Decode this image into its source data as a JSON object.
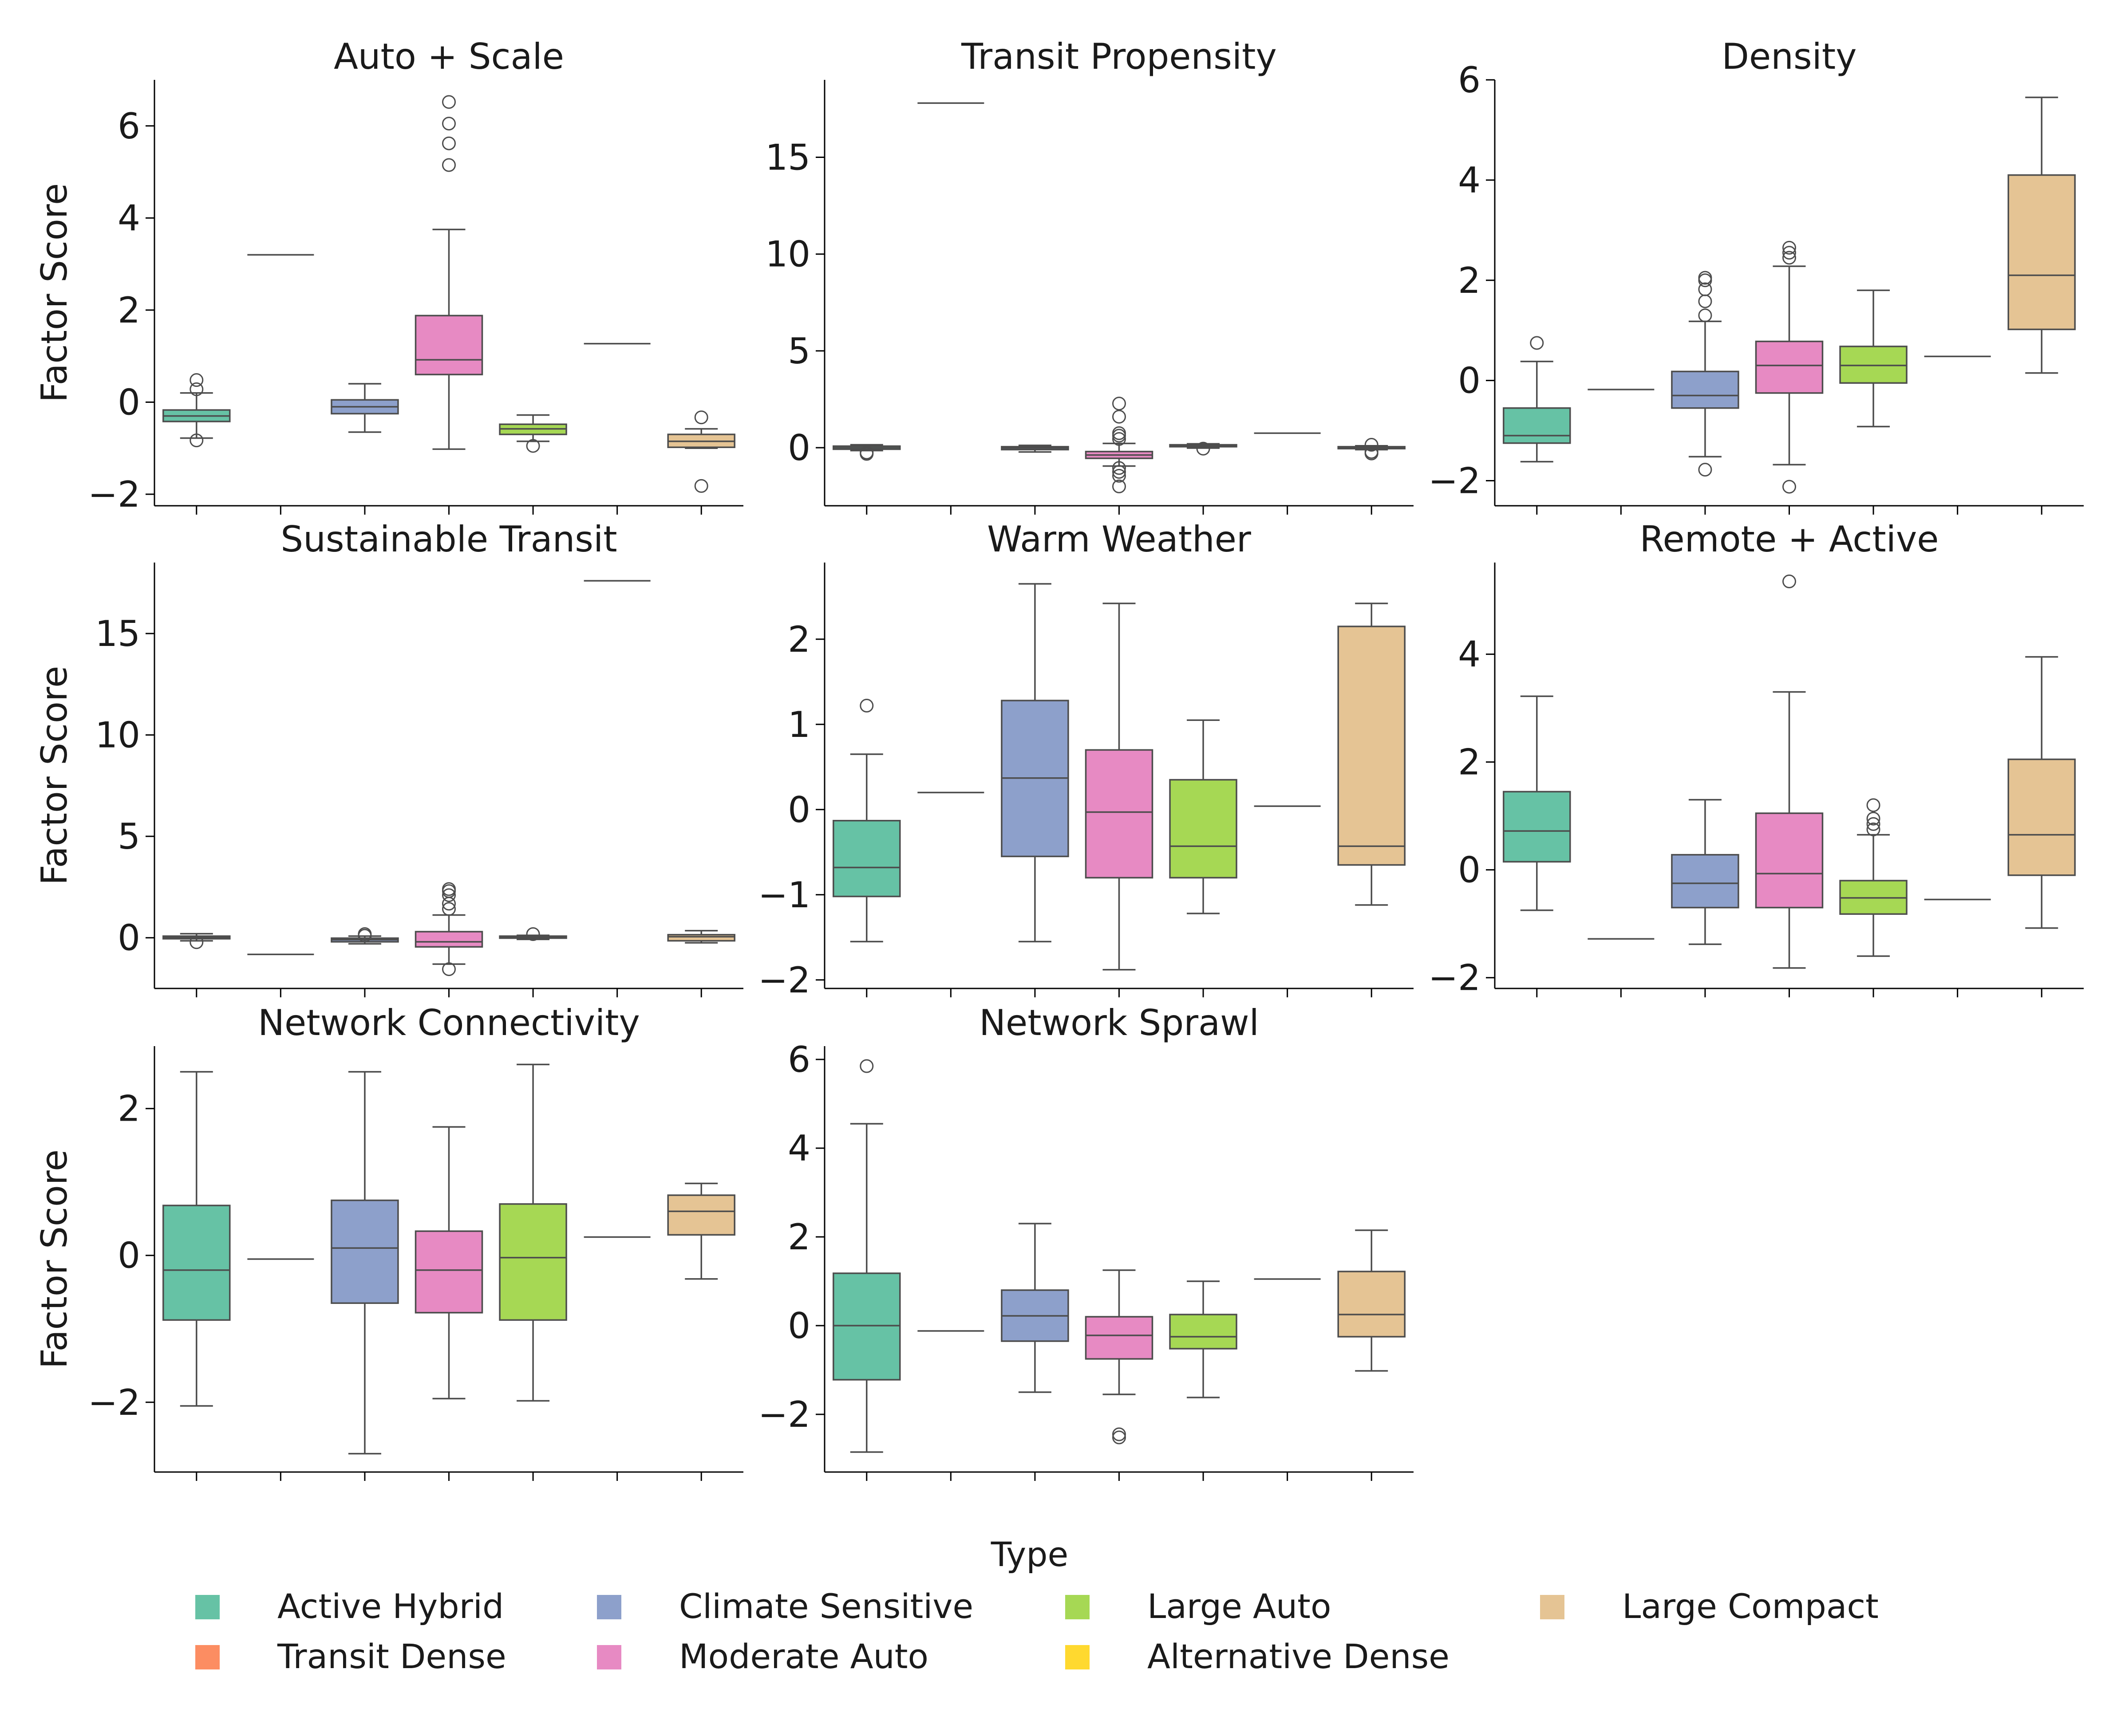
{
  "chart_data": {
    "type": "box",
    "ylabel": "Factor Score",
    "legend": {
      "title": "Type",
      "placement": "bottom-center",
      "entries": [
        {
          "name": "Active Hybrid",
          "color": "#66c2a5"
        },
        {
          "name": "Transit Dense",
          "color": "#fc8d62"
        },
        {
          "name": "Climate Sensitive",
          "color": "#8da0cb"
        },
        {
          "name": "Moderate Auto",
          "color": "#e78ac3"
        },
        {
          "name": "Large Auto",
          "color": "#a6d854"
        },
        {
          "name": "Alternative Dense",
          "color": "#ffd92f"
        },
        {
          "name": "Large Compact",
          "color": "#e5c494"
        }
      ]
    },
    "categories": [
      "Active Hybrid",
      "Transit Dense",
      "Climate Sensitive",
      "Moderate Auto",
      "Large Auto",
      "Alternative Dense",
      "Large Compact"
    ],
    "panels": [
      {
        "title": "Auto + Scale",
        "ylim": [
          -2.25,
          7.0
        ],
        "yticks": [
          -2,
          0,
          2,
          4,
          6
        ],
        "ytick_labels": [
          "−2",
          "0",
          "2",
          "4",
          "6"
        ],
        "boxes": [
          {
            "q1": -0.42,
            "median": -0.3,
            "q3": -0.17,
            "whislo": -0.78,
            "whishi": 0.2,
            "fliers": [
              0.28,
              0.48,
              -0.83
            ]
          },
          {
            "single": 3.2
          },
          {
            "q1": -0.25,
            "median": -0.1,
            "q3": 0.05,
            "whislo": -0.65,
            "whishi": 0.4,
            "fliers": []
          },
          {
            "q1": 0.6,
            "median": 0.92,
            "q3": 1.88,
            "whislo": -1.02,
            "whishi": 3.75,
            "fliers": [
              5.15,
              5.62,
              6.05,
              6.52
            ]
          },
          {
            "q1": -0.7,
            "median": -0.58,
            "q3": -0.48,
            "whislo": -0.85,
            "whishi": -0.28,
            "fliers": [
              -0.95
            ]
          },
          {
            "single": 1.27
          },
          {
            "q1": -0.98,
            "median": -0.85,
            "q3": -0.7,
            "whislo": -1.0,
            "whishi": -0.58,
            "fliers": [
              -0.33,
              -1.82
            ]
          }
        ]
      },
      {
        "title": "Transit Propensity",
        "ylim": [
          -3.0,
          19.0
        ],
        "yticks": [
          0,
          5,
          10,
          15
        ],
        "ytick_labels": [
          "0",
          "5",
          "10",
          "15"
        ],
        "boxes": [
          {
            "q1": -0.08,
            "median": 0.0,
            "q3": 0.08,
            "whislo": -0.15,
            "whishi": 0.15,
            "fliers": [
              -0.25,
              -0.32
            ]
          },
          {
            "single": 17.8
          },
          {
            "q1": -0.1,
            "median": -0.02,
            "q3": 0.05,
            "whislo": -0.22,
            "whishi": 0.12,
            "fliers": []
          },
          {
            "q1": -0.55,
            "median": -0.38,
            "q3": -0.2,
            "whislo": -0.95,
            "whishi": 0.22,
            "fliers": [
              0.45,
              0.62,
              0.75,
              1.6,
              2.28,
              -1.05,
              -1.25,
              -1.45,
              -2.0
            ]
          },
          {
            "q1": 0.05,
            "median": 0.1,
            "q3": 0.15,
            "whislo": -0.02,
            "whishi": 0.2,
            "fliers": [
              -0.05
            ]
          },
          {
            "single": 0.75
          },
          {
            "q1": -0.05,
            "median": 0.0,
            "q3": 0.05,
            "whislo": -0.1,
            "whishi": 0.1,
            "fliers": [
              0.15,
              -0.22,
              -0.3
            ]
          }
        ]
      },
      {
        "title": "Density",
        "ylim": [
          -2.5,
          6.0
        ],
        "yticks": [
          -2,
          0,
          2,
          4,
          6
        ],
        "ytick_labels": [
          "−2",
          "0",
          "2",
          "4",
          "6"
        ],
        "boxes": [
          {
            "q1": -1.25,
            "median": -1.1,
            "q3": -0.55,
            "whislo": -1.62,
            "whishi": 0.38,
            "fliers": [
              0.75
            ]
          },
          {
            "single": -0.18
          },
          {
            "q1": -0.55,
            "median": -0.3,
            "q3": 0.18,
            "whislo": -1.52,
            "whishi": 1.18,
            "fliers": [
              1.3,
              1.58,
              1.82,
              2.0,
              2.05,
              -1.78
            ]
          },
          {
            "q1": -0.25,
            "median": 0.3,
            "q3": 0.78,
            "whislo": -1.68,
            "whishi": 2.28,
            "fliers": [
              2.45,
              2.55,
              2.65,
              -2.12
            ]
          },
          {
            "q1": -0.05,
            "median": 0.3,
            "q3": 0.68,
            "whislo": -0.92,
            "whishi": 1.8,
            "fliers": []
          },
          {
            "single": 0.48
          },
          {
            "q1": 1.02,
            "median": 2.1,
            "q3": 4.1,
            "whislo": 0.15,
            "whishi": 5.65,
            "fliers": []
          }
        ]
      },
      {
        "title": "Sustainable Transit",
        "ylim": [
          -2.5,
          18.5
        ],
        "yticks": [
          0,
          5,
          10,
          15
        ],
        "ytick_labels": [
          "0",
          "5",
          "10",
          "15"
        ],
        "boxes": [
          {
            "q1": -0.05,
            "median": 0.02,
            "q3": 0.08,
            "whislo": -0.15,
            "whishi": 0.2,
            "fliers": [
              -0.22
            ]
          },
          {
            "single": -0.82
          },
          {
            "q1": -0.2,
            "median": -0.1,
            "q3": -0.02,
            "whislo": -0.3,
            "whishi": 0.08,
            "fliers": [
              0.1,
              0.18
            ]
          },
          {
            "q1": -0.45,
            "median": -0.2,
            "q3": 0.3,
            "whislo": -1.3,
            "whishi": 1.12,
            "fliers": [
              1.42,
              1.68,
              2.1,
              2.3,
              2.4,
              -1.55
            ]
          },
          {
            "q1": -0.02,
            "median": 0.03,
            "q3": 0.08,
            "whislo": -0.08,
            "whishi": 0.12,
            "fliers": [
              0.18
            ]
          },
          {
            "single": 17.6
          },
          {
            "q1": -0.15,
            "median": 0.05,
            "q3": 0.15,
            "whislo": -0.25,
            "whishi": 0.35,
            "fliers": []
          }
        ]
      },
      {
        "title": "Warm Weather",
        "ylim": [
          -2.1,
          2.9
        ],
        "yticks": [
          -2,
          -1,
          0,
          1,
          2
        ],
        "ytick_labels": [
          "−2",
          "−1",
          "0",
          "1",
          "2"
        ],
        "boxes": [
          {
            "q1": -1.02,
            "median": -0.68,
            "q3": -0.13,
            "whislo": -1.55,
            "whishi": 0.65,
            "fliers": [
              1.22
            ]
          },
          {
            "single": 0.2
          },
          {
            "q1": -0.55,
            "median": 0.37,
            "q3": 1.28,
            "whislo": -1.55,
            "whishi": 2.65,
            "fliers": []
          },
          {
            "q1": -0.8,
            "median": -0.03,
            "q3": 0.7,
            "whislo": -1.88,
            "whishi": 2.42,
            "fliers": []
          },
          {
            "q1": -0.8,
            "median": -0.43,
            "q3": 0.35,
            "whislo": -1.22,
            "whishi": 1.05,
            "fliers": []
          },
          {
            "single": 0.04
          },
          {
            "q1": -0.65,
            "median": -0.43,
            "q3": 2.15,
            "whislo": -1.12,
            "whishi": 2.42,
            "fliers": []
          }
        ]
      },
      {
        "title": "Remote + Active",
        "ylim": [
          -2.2,
          5.7
        ],
        "yticks": [
          -2,
          0,
          2,
          4
        ],
        "ytick_labels": [
          "−2",
          "0",
          "2",
          "4"
        ],
        "boxes": [
          {
            "q1": 0.15,
            "median": 0.72,
            "q3": 1.45,
            "whislo": -0.75,
            "whishi": 3.22,
            "fliers": []
          },
          {
            "single": -1.28
          },
          {
            "q1": -0.7,
            "median": -0.25,
            "q3": 0.28,
            "whislo": -1.38,
            "whishi": 1.3,
            "fliers": []
          },
          {
            "q1": -0.7,
            "median": -0.07,
            "q3": 1.05,
            "whislo": -1.82,
            "whishi": 3.3,
            "fliers": [
              5.35
            ]
          },
          {
            "q1": -0.82,
            "median": -0.52,
            "q3": -0.2,
            "whislo": -1.6,
            "whishi": 0.65,
            "fliers": [
              0.75,
              0.85,
              0.95,
              1.2
            ]
          },
          {
            "single": -0.55
          },
          {
            "q1": -0.1,
            "median": 0.65,
            "q3": 2.05,
            "whislo": -1.08,
            "whishi": 3.95,
            "fliers": []
          }
        ]
      },
      {
        "title": "Network Connectivity",
        "ylim": [
          -2.95,
          2.85
        ],
        "yticks": [
          -2,
          0,
          2
        ],
        "ytick_labels": [
          "−2",
          "0",
          "2"
        ],
        "boxes": [
          {
            "q1": -0.88,
            "median": -0.2,
            "q3": 0.68,
            "whislo": -2.05,
            "whishi": 2.5,
            "fliers": []
          },
          {
            "single": -0.05
          },
          {
            "q1": -0.65,
            "median": 0.1,
            "q3": 0.75,
            "whislo": -2.7,
            "whishi": 2.5,
            "fliers": []
          },
          {
            "q1": -0.78,
            "median": -0.2,
            "q3": 0.33,
            "whislo": -1.95,
            "whishi": 1.75,
            "fliers": []
          },
          {
            "q1": -0.88,
            "median": -0.03,
            "q3": 0.7,
            "whislo": -1.98,
            "whishi": 2.6,
            "fliers": []
          },
          {
            "single": 0.25
          },
          {
            "q1": 0.28,
            "median": 0.6,
            "q3": 0.82,
            "whislo": -0.32,
            "whishi": 0.98,
            "fliers": []
          }
        ]
      },
      {
        "title": "Network Sprawl",
        "ylim": [
          -3.3,
          6.3
        ],
        "yticks": [
          -2,
          0,
          2,
          4,
          6
        ],
        "ytick_labels": [
          "−2",
          "0",
          "2",
          "4",
          "6"
        ],
        "boxes": [
          {
            "q1": -1.22,
            "median": 0.0,
            "q3": 1.18,
            "whislo": -2.85,
            "whishi": 4.55,
            "fliers": [
              5.85
            ]
          },
          {
            "single": -0.12
          },
          {
            "q1": -0.35,
            "median": 0.22,
            "q3": 0.8,
            "whislo": -1.5,
            "whishi": 2.3,
            "fliers": []
          },
          {
            "q1": -0.75,
            "median": -0.22,
            "q3": 0.2,
            "whislo": -1.55,
            "whishi": 1.25,
            "fliers": [
              -2.45,
              -2.52
            ]
          },
          {
            "q1": -0.52,
            "median": -0.25,
            "q3": 0.25,
            "whislo": -1.62,
            "whishi": 1.0,
            "fliers": []
          },
          {
            "single": 1.05
          },
          {
            "q1": -0.25,
            "median": 0.25,
            "q3": 1.22,
            "whislo": -1.02,
            "whishi": 2.15,
            "fliers": []
          }
        ]
      }
    ]
  }
}
